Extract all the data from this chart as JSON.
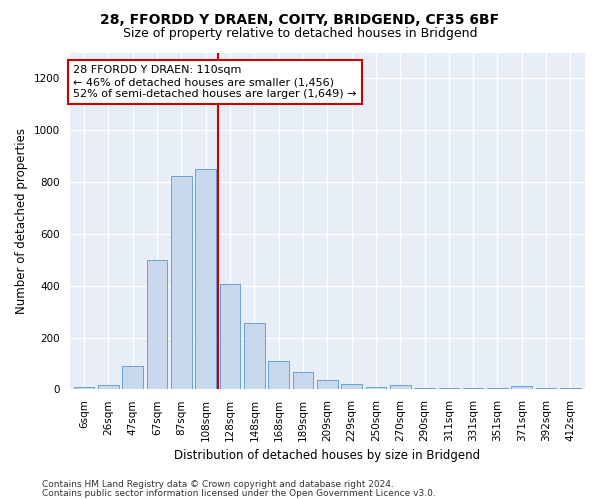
{
  "title": "28, FFORDD Y DRAEN, COITY, BRIDGEND, CF35 6BF",
  "subtitle": "Size of property relative to detached houses in Bridgend",
  "xlabel": "Distribution of detached houses by size in Bridgend",
  "ylabel": "Number of detached properties",
  "categories": [
    "6sqm",
    "26sqm",
    "47sqm",
    "67sqm",
    "87sqm",
    "108sqm",
    "128sqm",
    "148sqm",
    "168sqm",
    "189sqm",
    "209sqm",
    "229sqm",
    "250sqm",
    "270sqm",
    "290sqm",
    "311sqm",
    "331sqm",
    "351sqm",
    "371sqm",
    "392sqm",
    "412sqm"
  ],
  "values": [
    10,
    15,
    90,
    500,
    825,
    850,
    405,
    255,
    110,
    65,
    35,
    20,
    10,
    15,
    5,
    5,
    5,
    5,
    12,
    5,
    5
  ],
  "bar_color": "#c8d9ee",
  "bar_edge_color": "#6b9fd4",
  "highlight_line_color": "#cc0000",
  "annotation_text": "28 FFORDD Y DRAEN: 110sqm\n← 46% of detached houses are smaller (1,456)\n52% of semi-detached houses are larger (1,649) →",
  "annotation_box_facecolor": "#ffffff",
  "annotation_box_edgecolor": "#cc0000",
  "ylim": [
    0,
    1300
  ],
  "yticks": [
    0,
    200,
    400,
    600,
    800,
    1000,
    1200
  ],
  "plot_bg_color": "#e8eef8",
  "fig_bg_color": "#ffffff",
  "footer_line1": "Contains HM Land Registry data © Crown copyright and database right 2024.",
  "footer_line2": "Contains public sector information licensed under the Open Government Licence v3.0.",
  "title_fontsize": 10,
  "subtitle_fontsize": 9,
  "xlabel_fontsize": 8.5,
  "ylabel_fontsize": 8.5,
  "tick_fontsize": 7.5,
  "footer_fontsize": 6.5,
  "annotation_fontsize": 8
}
